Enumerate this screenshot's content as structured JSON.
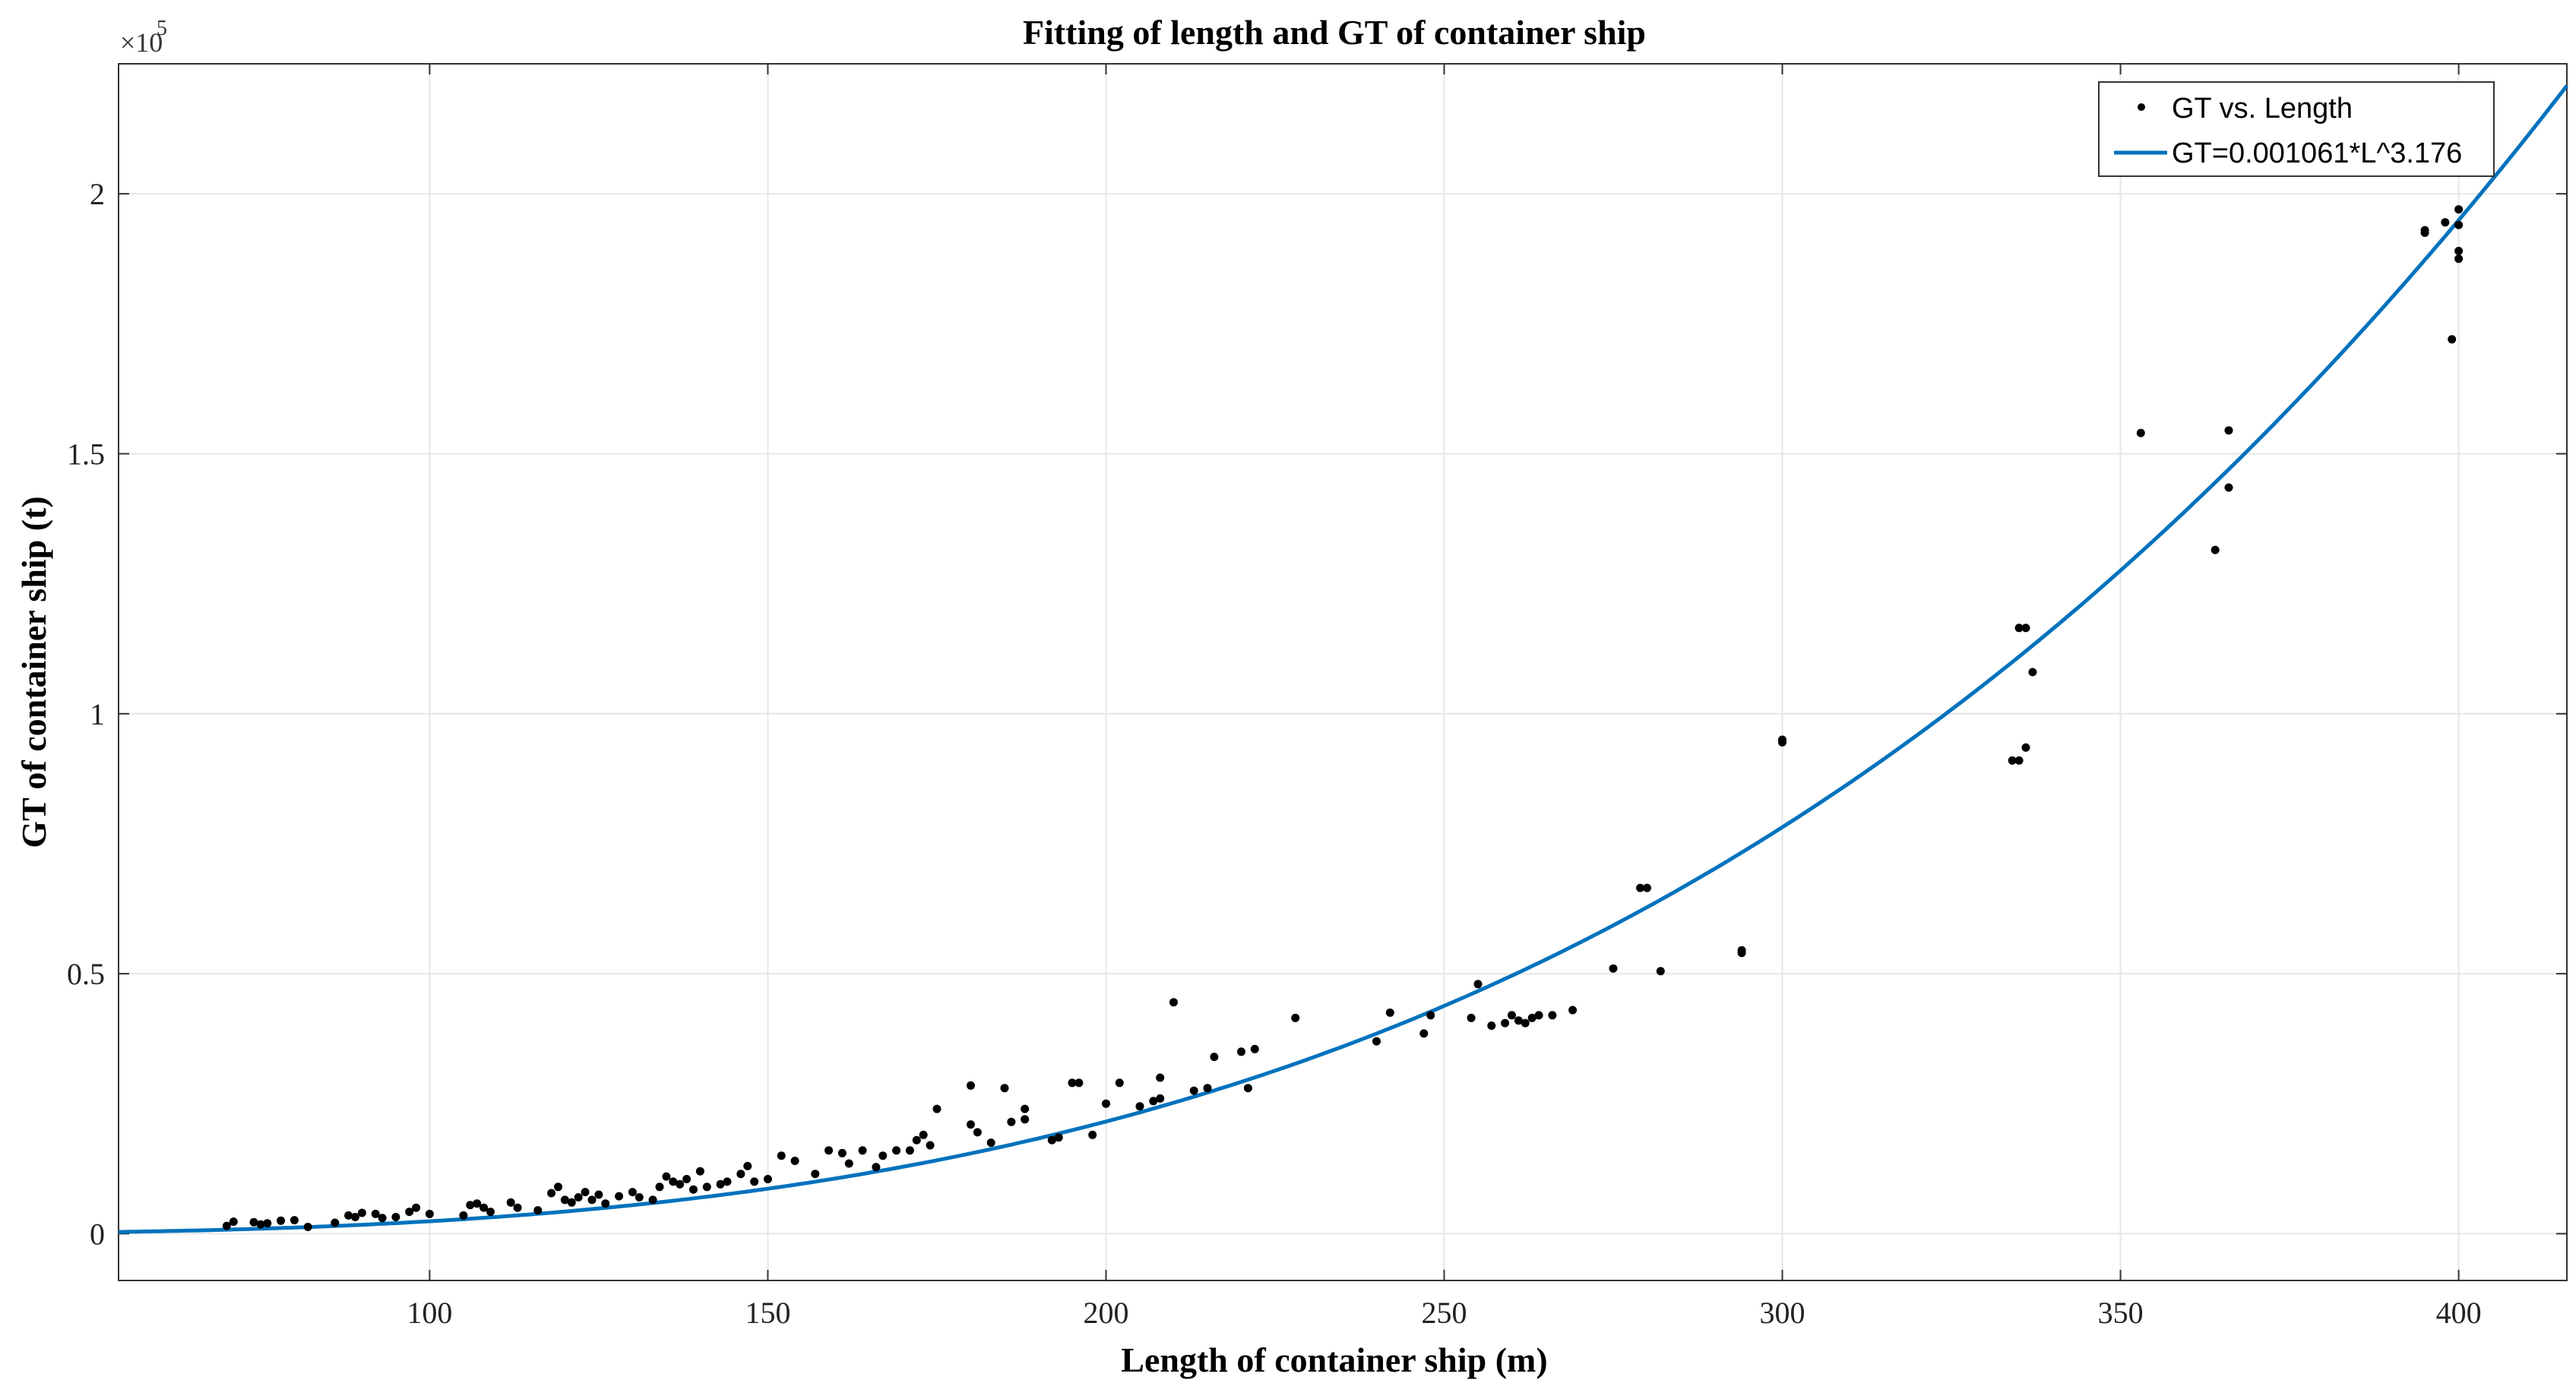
{
  "chart_data": {
    "type": "scatter",
    "title": "Fitting of length and GT of container ship",
    "xlabel": "Length of container ship (m)",
    "ylabel": "GT of container ship (t)",
    "xlim": [
      54,
      416
    ],
    "ylim": [
      -9000,
      225000
    ],
    "x_ticks": [
      100,
      150,
      200,
      250,
      300,
      350,
      400
    ],
    "x_tick_labels": [
      "100",
      "150",
      "200",
      "250",
      "300",
      "350",
      "400"
    ],
    "y_ticks": [
      0,
      50000,
      100000,
      150000,
      200000
    ],
    "y_tick_labels": [
      "0",
      "0.5",
      "1",
      "1.5",
      "2"
    ],
    "y_exponent_label": "×10",
    "y_exponent_power": "5",
    "grid": true,
    "legend_position": "top-right",
    "colors": {
      "scatter": "#000000",
      "fit": "#0072BD"
    },
    "series": [
      {
        "name": "GT vs. Length",
        "kind": "scatter",
        "points": [
          [
            70,
            1500
          ],
          [
            71,
            2300
          ],
          [
            74,
            2200
          ],
          [
            75,
            1800
          ],
          [
            76,
            2000
          ],
          [
            78,
            2500
          ],
          [
            80,
            2600
          ],
          [
            82,
            1300
          ],
          [
            86,
            2100
          ],
          [
            88,
            3500
          ],
          [
            89,
            3200
          ],
          [
            90,
            4000
          ],
          [
            92,
            3800
          ],
          [
            93,
            3000
          ],
          [
            95,
            3200
          ],
          [
            97,
            4200
          ],
          [
            98,
            5000
          ],
          [
            100,
            3800
          ],
          [
            105,
            3500
          ],
          [
            106,
            5500
          ],
          [
            107,
            5800
          ],
          [
            108,
            5000
          ],
          [
            109,
            4200
          ],
          [
            112,
            6000
          ],
          [
            113,
            5000
          ],
          [
            116,
            4500
          ],
          [
            118,
            7800
          ],
          [
            119,
            9000
          ],
          [
            120,
            6500
          ],
          [
            121,
            6000
          ],
          [
            122,
            7000
          ],
          [
            123,
            8000
          ],
          [
            124,
            6500
          ],
          [
            125,
            7500
          ],
          [
            126,
            5800
          ],
          [
            128,
            7200
          ],
          [
            130,
            8000
          ],
          [
            131,
            7000
          ],
          [
            133,
            6500
          ],
          [
            134,
            9000
          ],
          [
            135,
            11000
          ],
          [
            136,
            10000
          ],
          [
            137,
            9500
          ],
          [
            138,
            10500
          ],
          [
            139,
            8500
          ],
          [
            140,
            12000
          ],
          [
            141,
            9000
          ],
          [
            143,
            9500
          ],
          [
            144,
            10000
          ],
          [
            146,
            11500
          ],
          [
            147,
            13000
          ],
          [
            148,
            10000
          ],
          [
            150,
            10500
          ],
          [
            152,
            15000
          ],
          [
            154,
            14000
          ],
          [
            157,
            11500
          ],
          [
            159,
            16000
          ],
          [
            161,
            15500
          ],
          [
            162,
            13500
          ],
          [
            164,
            16000
          ],
          [
            166,
            12800
          ],
          [
            167,
            15000
          ],
          [
            169,
            16000
          ],
          [
            171,
            16000
          ],
          [
            172,
            18000
          ],
          [
            173,
            19000
          ],
          [
            174,
            17000
          ],
          [
            175,
            24000
          ],
          [
            180,
            28500
          ],
          [
            180,
            21000
          ],
          [
            181,
            19500
          ],
          [
            183,
            17500
          ],
          [
            185,
            28000
          ],
          [
            186,
            21500
          ],
          [
            188,
            24000
          ],
          [
            188,
            22000
          ],
          [
            192,
            18000
          ],
          [
            193,
            18500
          ],
          [
            195,
            29000
          ],
          [
            196,
            29000
          ],
          [
            198,
            19000
          ],
          [
            200,
            25000
          ],
          [
            202,
            29000
          ],
          [
            205,
            24500
          ],
          [
            207,
            25500
          ],
          [
            208,
            30000
          ],
          [
            208,
            26000
          ],
          [
            210,
            44500
          ],
          [
            213,
            27500
          ],
          [
            215,
            28000
          ],
          [
            216,
            34000
          ],
          [
            220,
            35000
          ],
          [
            221,
            28000
          ],
          [
            222,
            35500
          ],
          [
            228,
            41500
          ],
          [
            240,
            37000
          ],
          [
            242,
            42500
          ],
          [
            247,
            38500
          ],
          [
            248,
            42000
          ],
          [
            254,
            41500
          ],
          [
            255,
            48000
          ],
          [
            257,
            40000
          ],
          [
            259,
            40500
          ],
          [
            260,
            42000
          ],
          [
            261,
            41000
          ],
          [
            262,
            40500
          ],
          [
            263,
            41500
          ],
          [
            264,
            42000
          ],
          [
            266,
            42000
          ],
          [
            269,
            43000
          ],
          [
            275,
            51000
          ],
          [
            279,
            66500
          ],
          [
            280,
            66500
          ],
          [
            282,
            50500
          ],
          [
            294,
            54500
          ],
          [
            294,
            54000
          ],
          [
            300,
            95000
          ],
          [
            300,
            94500
          ],
          [
            334,
            91000
          ],
          [
            335,
            91000
          ],
          [
            335,
            116500
          ],
          [
            336,
            116500
          ],
          [
            336,
            93500
          ],
          [
            337,
            108000
          ],
          [
            353,
            154000
          ],
          [
            364,
            131500
          ],
          [
            366,
            154500
          ],
          [
            366,
            143500
          ],
          [
            395,
            192500
          ],
          [
            395,
            193000
          ],
          [
            398,
            194500
          ],
          [
            399,
            172000
          ],
          [
            400,
            194000
          ],
          [
            400,
            197000
          ],
          [
            400,
            189000
          ],
          [
            400,
            187500
          ]
        ]
      },
      {
        "name": "GT=0.001061*L^3.176",
        "kind": "line",
        "coefficient": 0.001061,
        "exponent": 3.176,
        "x_range": [
          54,
          416
        ]
      }
    ]
  }
}
